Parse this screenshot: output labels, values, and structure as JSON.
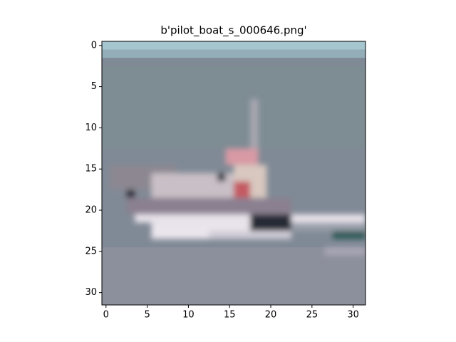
{
  "chart_data": {
    "type": "image",
    "title": "b'pilot_boat_s_000646.png'",
    "xlim": [
      -0.5,
      31.5
    ],
    "ylim": [
      31.5,
      -0.5
    ],
    "xticks": [
      0,
      5,
      10,
      15,
      20,
      25,
      30
    ],
    "yticks": [
      0,
      5,
      10,
      15,
      20,
      25,
      30
    ]
  }
}
